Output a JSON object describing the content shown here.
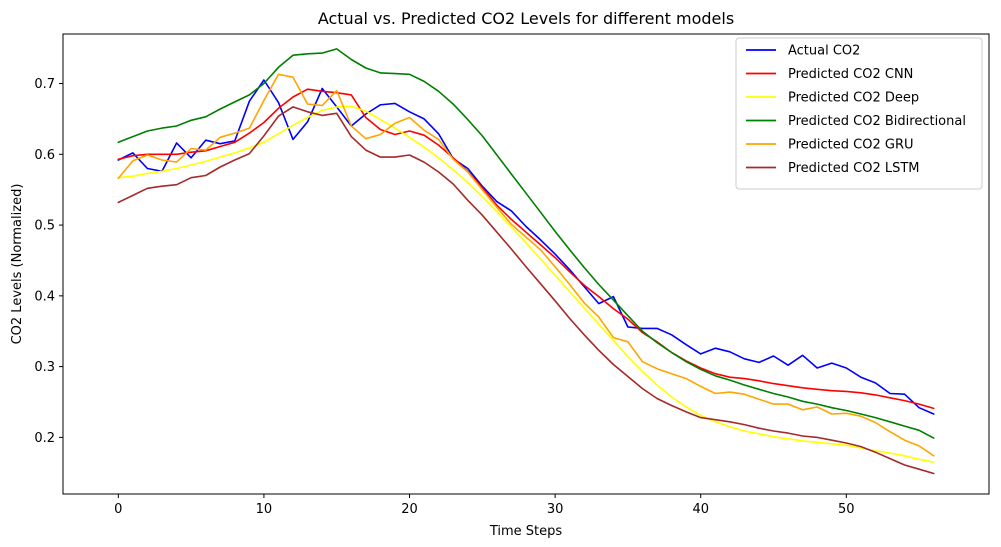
{
  "chart_data": {
    "type": "line",
    "title": "Actual vs. Predicted CO2 Levels for different models",
    "xlabel": "Time Steps",
    "ylabel": "CO2 Levels (Normalized)",
    "xlim": [
      -3.8,
      59.8
    ],
    "ylim": [
      0.12,
      0.77
    ],
    "xticks": [
      0,
      10,
      20,
      30,
      40,
      50
    ],
    "yticks": [
      0.2,
      0.3,
      0.4,
      0.5,
      0.6,
      0.7
    ],
    "xtick_labels": [
      "0",
      "10",
      "20",
      "30",
      "40",
      "50"
    ],
    "ytick_labels": [
      "0.2",
      "0.3",
      "0.4",
      "0.5",
      "0.6",
      "0.7"
    ],
    "grid": false,
    "legend_position": "top-right",
    "series": [
      {
        "name": "Actual CO2",
        "color": "#0000ff",
        "values": [
          0.592,
          0.602,
          0.58,
          0.576,
          0.616,
          0.595,
          0.62,
          0.615,
          0.619,
          0.675,
          0.705,
          0.673,
          0.621,
          0.646,
          0.693,
          0.667,
          0.64,
          0.657,
          0.67,
          0.672,
          0.66,
          0.65,
          0.629,
          0.594,
          0.58,
          0.555,
          0.533,
          0.52,
          0.498,
          0.479,
          0.459,
          0.437,
          0.413,
          0.389,
          0.399,
          0.356,
          0.354,
          0.354,
          0.345,
          0.331,
          0.318,
          0.326,
          0.321,
          0.311,
          0.306,
          0.315,
          0.302,
          0.316,
          0.298,
          0.305,
          0.298,
          0.285,
          0.277,
          0.262,
          0.261,
          0.242,
          0.233
        ]
      },
      {
        "name": "Predicted CO2 CNN",
        "color": "#ff0000",
        "values": [
          0.593,
          0.598,
          0.6,
          0.6,
          0.6,
          0.603,
          0.605,
          0.611,
          0.617,
          0.63,
          0.645,
          0.665,
          0.681,
          0.692,
          0.689,
          0.687,
          0.684,
          0.652,
          0.635,
          0.628,
          0.633,
          0.627,
          0.613,
          0.595,
          0.576,
          0.553,
          0.528,
          0.508,
          0.49,
          0.472,
          0.454,
          0.434,
          0.415,
          0.399,
          0.382,
          0.367,
          0.348,
          0.335,
          0.32,
          0.308,
          0.298,
          0.29,
          0.285,
          0.283,
          0.28,
          0.276,
          0.273,
          0.27,
          0.268,
          0.266,
          0.265,
          0.263,
          0.26,
          0.256,
          0.252,
          0.247,
          0.241
        ]
      },
      {
        "name": "Predicted CO2 Deep",
        "color": "#ffff00",
        "values": [
          0.567,
          0.569,
          0.573,
          0.576,
          0.58,
          0.585,
          0.59,
          0.596,
          0.602,
          0.609,
          0.617,
          0.629,
          0.641,
          0.652,
          0.662,
          0.667,
          0.668,
          0.661,
          0.649,
          0.637,
          0.624,
          0.61,
          0.595,
          0.578,
          0.56,
          0.54,
          0.519,
          0.497,
          0.475,
          0.452,
          0.429,
          0.406,
          0.383,
          0.36,
          0.337,
          0.314,
          0.293,
          0.274,
          0.257,
          0.243,
          0.231,
          0.222,
          0.215,
          0.209,
          0.205,
          0.201,
          0.198,
          0.195,
          0.193,
          0.191,
          0.189,
          0.185,
          0.181,
          0.178,
          0.174,
          0.169,
          0.165
        ]
      },
      {
        "name": "Predicted CO2 Bidirectional",
        "color": "#008000",
        "values": [
          0.617,
          0.625,
          0.633,
          0.637,
          0.64,
          0.648,
          0.653,
          0.664,
          0.674,
          0.684,
          0.7,
          0.723,
          0.74,
          0.742,
          0.743,
          0.749,
          0.734,
          0.722,
          0.715,
          0.714,
          0.713,
          0.703,
          0.689,
          0.671,
          0.649,
          0.626,
          0.599,
          0.572,
          0.545,
          0.518,
          0.491,
          0.465,
          0.44,
          0.416,
          0.394,
          0.372,
          0.35,
          0.334,
          0.32,
          0.307,
          0.296,
          0.287,
          0.281,
          0.274,
          0.268,
          0.262,
          0.257,
          0.251,
          0.247,
          0.242,
          0.238,
          0.233,
          0.228,
          0.222,
          0.216,
          0.21,
          0.199
        ]
      },
      {
        "name": "Predicted CO2 GRU",
        "color": "#ffa500",
        "values": [
          0.566,
          0.591,
          0.599,
          0.592,
          0.589,
          0.608,
          0.606,
          0.624,
          0.63,
          0.637,
          0.676,
          0.713,
          0.709,
          0.671,
          0.669,
          0.69,
          0.64,
          0.622,
          0.628,
          0.644,
          0.652,
          0.634,
          0.621,
          0.593,
          0.575,
          0.55,
          0.525,
          0.501,
          0.483,
          0.465,
          0.441,
          0.416,
          0.39,
          0.37,
          0.341,
          0.335,
          0.307,
          0.297,
          0.29,
          0.283,
          0.272,
          0.262,
          0.264,
          0.261,
          0.254,
          0.247,
          0.247,
          0.239,
          0.243,
          0.233,
          0.234,
          0.23,
          0.221,
          0.208,
          0.196,
          0.188,
          0.174
        ]
      },
      {
        "name": "Predicted CO2 LSTM",
        "color": "#a52a2a",
        "values": [
          0.532,
          0.542,
          0.552,
          0.555,
          0.557,
          0.567,
          0.57,
          0.582,
          0.592,
          0.601,
          0.626,
          0.654,
          0.667,
          0.66,
          0.655,
          0.658,
          0.625,
          0.606,
          0.596,
          0.596,
          0.599,
          0.589,
          0.575,
          0.558,
          0.535,
          0.514,
          0.49,
          0.466,
          0.441,
          0.417,
          0.393,
          0.368,
          0.345,
          0.323,
          0.303,
          0.286,
          0.269,
          0.255,
          0.245,
          0.236,
          0.228,
          0.225,
          0.222,
          0.218,
          0.213,
          0.209,
          0.206,
          0.202,
          0.2,
          0.196,
          0.192,
          0.187,
          0.179,
          0.17,
          0.161,
          0.155,
          0.149
        ]
      }
    ]
  }
}
